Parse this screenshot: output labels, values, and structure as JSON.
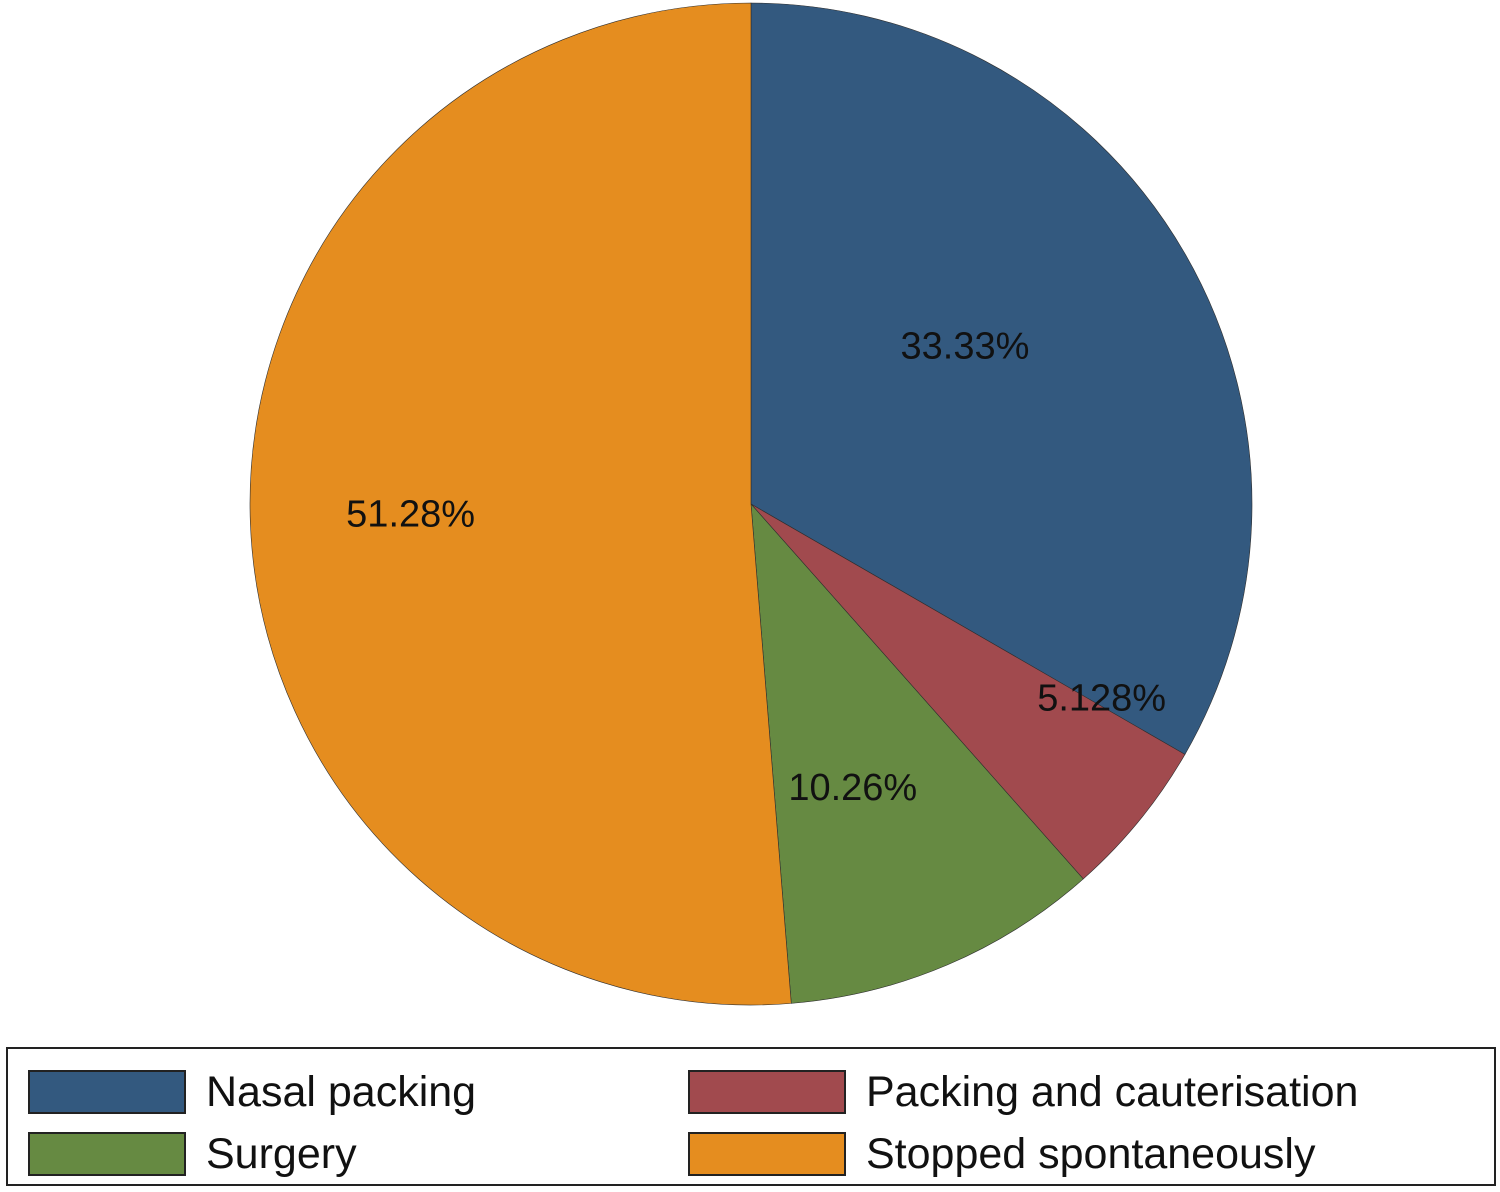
{
  "chart_data": {
    "type": "pie",
    "start_angle": "12 o'clock",
    "direction": "clockwise",
    "slices": [
      {
        "label": "Nasal packing",
        "value": 33.33,
        "value_label": "33.33%",
        "color": "#33597F"
      },
      {
        "label": "Packing and cauterisation",
        "value": 5.128,
        "value_label": "5.128%",
        "color": "#A14A4E"
      },
      {
        "label": "Surgery",
        "value": 10.26,
        "value_label": "10.26%",
        "color": "#668A42"
      },
      {
        "label": "Stopped spontaneously",
        "value": 51.28,
        "value_label": "51.28%",
        "color": "#E58D1F"
      }
    ],
    "legend": {
      "placement": "bottom",
      "columns": 2,
      "entries": [
        {
          "label": "Nasal packing",
          "color": "#33597F"
        },
        {
          "label": "Packing and cauterisation",
          "color": "#A14A4E"
        },
        {
          "label": "Surgery",
          "color": "#668A42"
        },
        {
          "label": "Stopped spontaneously",
          "color": "#E58D1F"
        }
      ]
    }
  }
}
